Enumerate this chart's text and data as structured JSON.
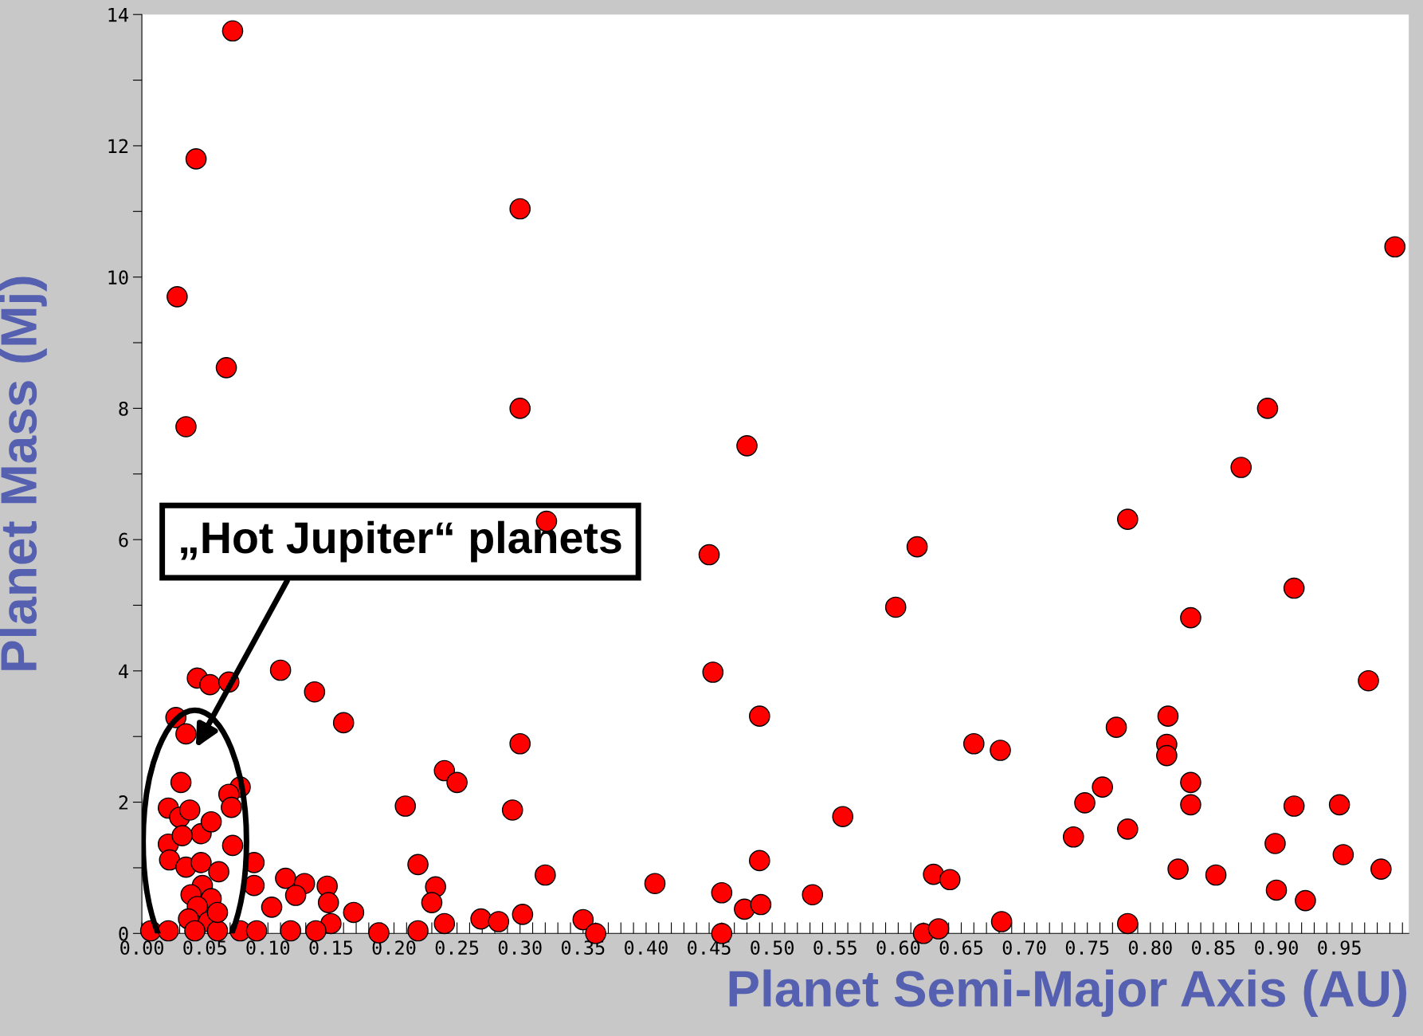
{
  "chart_data": {
    "type": "scatter",
    "xlabel": "Planet Semi-Major Axis (AU)",
    "ylabel": "Planet Mass (Mj)",
    "marker": "circle",
    "grid": false,
    "xlim": [
      0,
      1.005
    ],
    "ylim": [
      0,
      14
    ],
    "xticks": [
      {
        "value": 0,
        "label": "0.00"
      },
      {
        "value": 0.05,
        "label": "0.05"
      },
      {
        "value": 0.1,
        "label": "0.10"
      },
      {
        "value": 0.15,
        "label": "0.15"
      },
      {
        "value": 0.2,
        "label": "0.20"
      },
      {
        "value": 0.25,
        "label": "0.25"
      },
      {
        "value": 0.3,
        "label": "0.30"
      },
      {
        "value": 0.35,
        "label": "0.35"
      },
      {
        "value": 0.4,
        "label": "0.40"
      },
      {
        "value": 0.45,
        "label": "0.45"
      },
      {
        "value": 0.5,
        "label": "0.50"
      },
      {
        "value": 0.55,
        "label": "0.55"
      },
      {
        "value": 0.6,
        "label": "0.60"
      },
      {
        "value": 0.65,
        "label": "0.65"
      },
      {
        "value": 0.7,
        "label": "0.70"
      },
      {
        "value": 0.75,
        "label": "0.75"
      },
      {
        "value": 0.8,
        "label": "0.80"
      },
      {
        "value": 0.85,
        "label": "0.85"
      },
      {
        "value": 0.9,
        "label": "0.90"
      },
      {
        "value": 0.95,
        "label": "0.95"
      },
      {
        "value": 0.01,
        "label": null
      },
      {
        "value": 0.02,
        "label": null
      },
      {
        "value": 0.03,
        "label": null
      },
      {
        "value": 0.04,
        "label": null
      },
      {
        "value": 0.06,
        "label": null
      },
      {
        "value": 0.07,
        "label": null
      },
      {
        "value": 0.08,
        "label": null
      },
      {
        "value": 0.09,
        "label": null
      },
      {
        "value": 0.11,
        "label": null
      },
      {
        "value": 0.12,
        "label": null
      },
      {
        "value": 0.13,
        "label": null
      },
      {
        "value": 0.14,
        "label": null
      },
      {
        "value": 0.16,
        "label": null
      },
      {
        "value": 0.17,
        "label": null
      },
      {
        "value": 0.18,
        "label": null
      },
      {
        "value": 0.19,
        "label": null
      },
      {
        "value": 0.21,
        "label": null
      },
      {
        "value": 0.22,
        "label": null
      },
      {
        "value": 0.23,
        "label": null
      },
      {
        "value": 0.24,
        "label": null
      },
      {
        "value": 0.26,
        "label": null
      },
      {
        "value": 0.27,
        "label": null
      },
      {
        "value": 0.28,
        "label": null
      },
      {
        "value": 0.29,
        "label": null
      },
      {
        "value": 0.31,
        "label": null
      },
      {
        "value": 0.32,
        "label": null
      },
      {
        "value": 0.33,
        "label": null
      },
      {
        "value": 0.34,
        "label": null
      },
      {
        "value": 0.36,
        "label": null
      },
      {
        "value": 0.37,
        "label": null
      },
      {
        "value": 0.38,
        "label": null
      },
      {
        "value": 0.39,
        "label": null
      },
      {
        "value": 0.41,
        "label": null
      },
      {
        "value": 0.42,
        "label": null
      },
      {
        "value": 0.43,
        "label": null
      },
      {
        "value": 0.44,
        "label": null
      },
      {
        "value": 0.46,
        "label": null
      },
      {
        "value": 0.47,
        "label": null
      },
      {
        "value": 0.48,
        "label": null
      },
      {
        "value": 0.49,
        "label": null
      },
      {
        "value": 0.51,
        "label": null
      },
      {
        "value": 0.52,
        "label": null
      },
      {
        "value": 0.53,
        "label": null
      },
      {
        "value": 0.54,
        "label": null
      },
      {
        "value": 0.56,
        "label": null
      },
      {
        "value": 0.57,
        "label": null
      },
      {
        "value": 0.58,
        "label": null
      },
      {
        "value": 0.59,
        "label": null
      },
      {
        "value": 0.61,
        "label": null
      },
      {
        "value": 0.62,
        "label": null
      },
      {
        "value": 0.63,
        "label": null
      },
      {
        "value": 0.64,
        "label": null
      },
      {
        "value": 0.66,
        "label": null
      },
      {
        "value": 0.67,
        "label": null
      },
      {
        "value": 0.68,
        "label": null
      },
      {
        "value": 0.69,
        "label": null
      },
      {
        "value": 0.71,
        "label": null
      },
      {
        "value": 0.72,
        "label": null
      },
      {
        "value": 0.73,
        "label": null
      },
      {
        "value": 0.74,
        "label": null
      },
      {
        "value": 0.76,
        "label": null
      },
      {
        "value": 0.77,
        "label": null
      },
      {
        "value": 0.78,
        "label": null
      },
      {
        "value": 0.79,
        "label": null
      },
      {
        "value": 0.81,
        "label": null
      },
      {
        "value": 0.82,
        "label": null
      },
      {
        "value": 0.83,
        "label": null
      },
      {
        "value": 0.84,
        "label": null
      },
      {
        "value": 0.86,
        "label": null
      },
      {
        "value": 0.87,
        "label": null
      },
      {
        "value": 0.88,
        "label": null
      },
      {
        "value": 0.89,
        "label": null
      },
      {
        "value": 0.91,
        "label": null
      },
      {
        "value": 0.92,
        "label": null
      },
      {
        "value": 0.93,
        "label": null
      },
      {
        "value": 0.94,
        "label": null
      },
      {
        "value": 0.96,
        "label": null
      },
      {
        "value": 0.97,
        "label": null
      },
      {
        "value": 0.98,
        "label": null
      },
      {
        "value": 0.99,
        "label": null
      },
      {
        "value": 1.0,
        "label": null
      }
    ],
    "yticks": [
      0,
      2,
      4,
      6,
      8,
      10,
      12,
      14,
      {
        "value": 1,
        "label": null
      },
      {
        "value": 3,
        "label": null
      },
      {
        "value": 5,
        "label": null
      },
      {
        "value": 7,
        "label": null
      },
      {
        "value": 9,
        "label": null
      },
      {
        "value": 11,
        "label": null
      },
      {
        "value": 13,
        "label": null
      }
    ],
    "annotations": [
      "„Hot Jupiter“ planets"
    ],
    "series": [
      {
        "color": "#ff0000",
        "x": [
          0.072,
          0.043,
          0.3,
          0.994,
          0.028,
          0.067,
          0.035,
          0.3,
          0.48,
          0.872,
          0.893,
          0.321,
          0.45,
          0.615,
          0.782,
          0.598,
          0.914,
          0.832,
          0.044,
          0.054,
          0.069,
          0.11,
          0.137,
          0.16,
          0.453,
          0.49,
          0.973,
          0.027,
          0.035,
          0.3,
          0.66,
          0.681,
          0.773,
          0.814,
          0.813,
          0.813,
          0.832,
          0.832,
          0.031,
          0.078,
          0.069,
          0.071,
          0.24,
          0.25,
          0.209,
          0.294,
          0.556,
          0.748,
          0.762,
          0.739,
          0.782,
          0.899,
          0.914,
          0.95,
          0.953,
          0.983,
          0.822,
          0.852,
          0.9,
          0.923,
          0.782,
          0.682,
          0.628,
          0.641,
          0.62,
          0.632,
          0.532,
          0.49,
          0.46,
          0.478,
          0.491,
          0.46,
          0.407,
          0.32,
          0.302,
          0.35,
          0.36,
          0.269,
          0.283,
          0.219,
          0.233,
          0.23,
          0.24,
          0.219,
          0.188,
          0.168,
          0.147,
          0.148,
          0.15,
          0.138,
          0.114,
          0.129,
          0.122,
          0.103,
          0.118,
          0.089,
          0.089,
          0.078,
          0.091,
          0.021,
          0.03,
          0.038,
          0.047,
          0.055,
          0.021,
          0.032,
          0.022,
          0.035,
          0.047,
          0.061,
          0.048,
          0.039,
          0.055,
          0.044,
          0.037,
          0.053,
          0.007,
          0.021,
          0.042,
          0.06,
          0.072,
          0.06
        ],
        "values": [
          13.75,
          11.8,
          11.04,
          10.46,
          9.7,
          8.62,
          7.72,
          8.0,
          7.43,
          7.1,
          8.0,
          6.28,
          5.77,
          5.89,
          6.31,
          4.97,
          5.26,
          4.81,
          3.89,
          3.79,
          3.83,
          4.01,
          3.68,
          3.21,
          3.98,
          3.31,
          3.85,
          3.29,
          3.04,
          2.89,
          2.89,
          2.79,
          3.14,
          3.31,
          2.88,
          2.71,
          2.3,
          1.96,
          2.3,
          2.23,
          2.12,
          1.92,
          2.48,
          2.3,
          1.94,
          1.88,
          1.78,
          1.99,
          2.23,
          1.47,
          1.59,
          1.37,
          1.94,
          1.96,
          1.2,
          0.98,
          0.98,
          0.89,
          0.66,
          0.5,
          0.15,
          0.18,
          0.9,
          0.82,
          0.0,
          0.07,
          0.59,
          1.11,
          0.62,
          0.37,
          0.44,
          0.0,
          0.76,
          0.89,
          0.29,
          0.21,
          0.0,
          0.22,
          0.18,
          1.05,
          0.71,
          0.47,
          0.15,
          0.04,
          0.01,
          0.32,
          0.72,
          0.47,
          0.15,
          0.04,
          0.84,
          0.76,
          0.58,
          0.4,
          0.04,
          1.08,
          0.73,
          0.04,
          0.04,
          1.91,
          1.77,
          1.88,
          1.52,
          1.7,
          1.36,
          1.49,
          1.12,
          1.01,
          1.08,
          0.94,
          0.73,
          0.59,
          0.53,
          0.41,
          0.22,
          0.18,
          0.04,
          0.04,
          0.04,
          0.04,
          1.34,
          0.32
        ]
      }
    ]
  }
}
